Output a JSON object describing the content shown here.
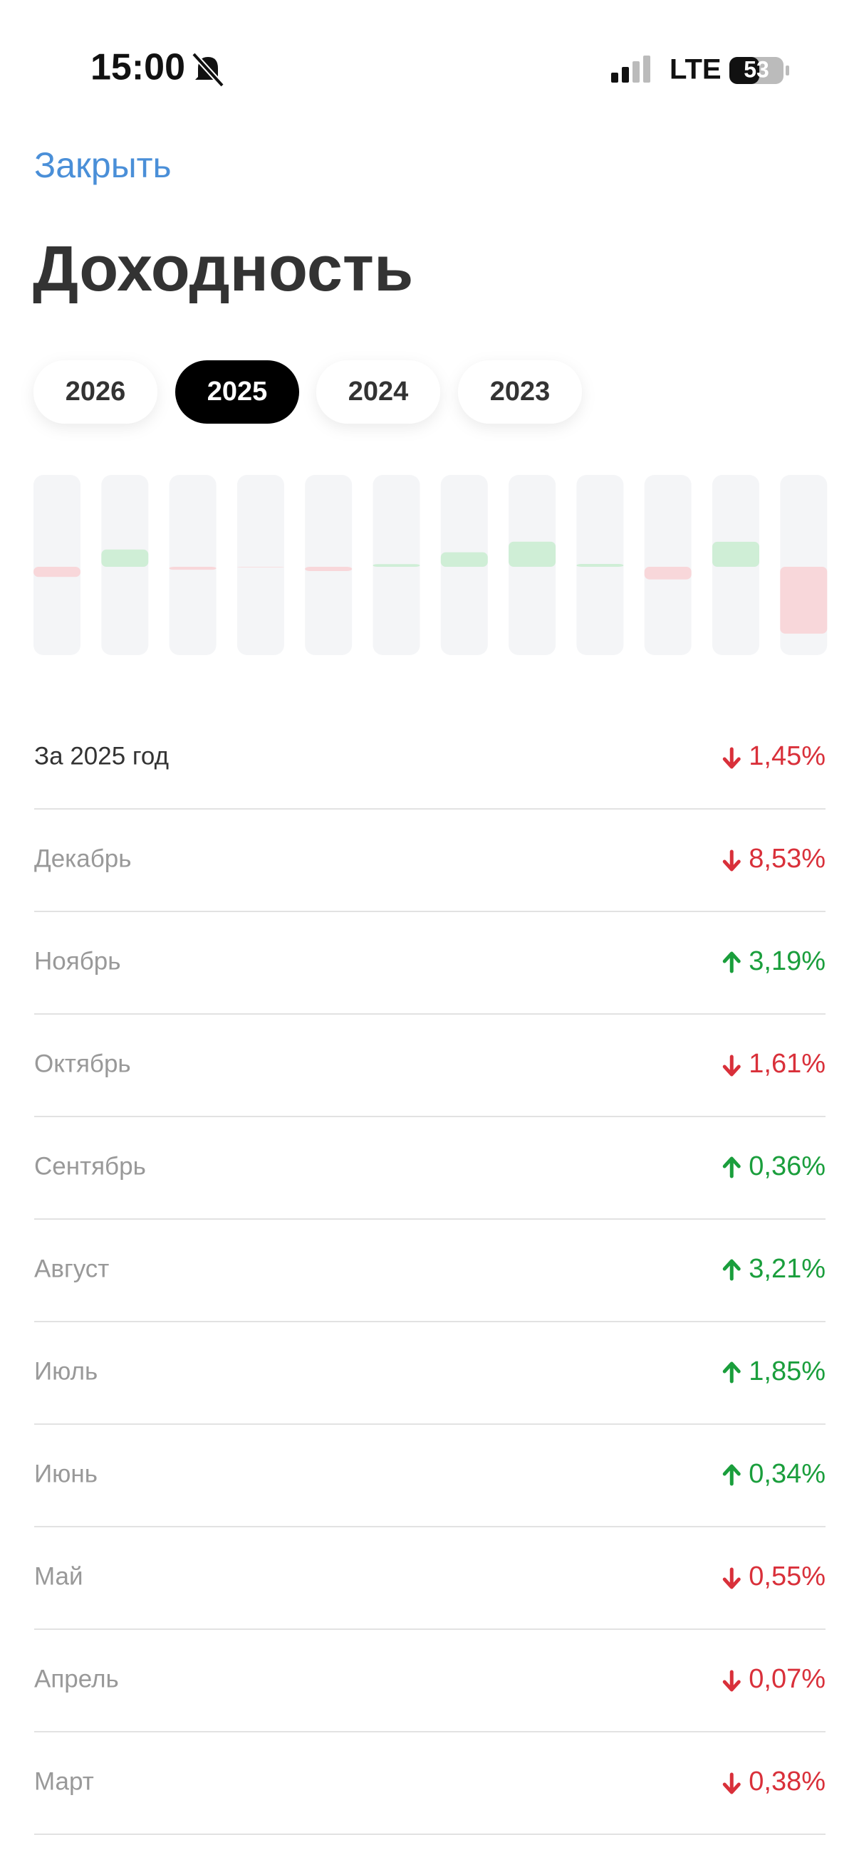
{
  "status_bar": {
    "time": "15:00",
    "network": "LTE",
    "battery": "53"
  },
  "close": "Закрыть",
  "title": "Доходность",
  "year_tabs": [
    "2026",
    "2025",
    "2024",
    "2023"
  ],
  "selected_tab": 1,
  "total": {
    "label": "За 2025 год",
    "value": -1.45,
    "value_label": "1,45%"
  },
  "months": [
    {
      "name": "Декабрь",
      "value": -8.53,
      "value_label": "8,53%"
    },
    {
      "name": "Ноябрь",
      "value": 3.19,
      "value_label": "3,19%"
    },
    {
      "name": "Октябрь",
      "value": -1.61,
      "value_label": "1,61%"
    },
    {
      "name": "Сентябрь",
      "value": 0.36,
      "value_label": "0,36%"
    },
    {
      "name": "Август",
      "value": 3.21,
      "value_label": "3,21%"
    },
    {
      "name": "Июль",
      "value": 1.85,
      "value_label": "1,85%"
    },
    {
      "name": "Июнь",
      "value": 0.34,
      "value_label": "0,34%"
    },
    {
      "name": "Май",
      "value": -0.55,
      "value_label": "0,55%"
    },
    {
      "name": "Апрель",
      "value": -0.07,
      "value_label": "0,07%"
    },
    {
      "name": "Март",
      "value": -0.38,
      "value_label": "0,38%"
    },
    {
      "value": 2.2
    },
    {
      "value": -1.3
    }
  ]
}
